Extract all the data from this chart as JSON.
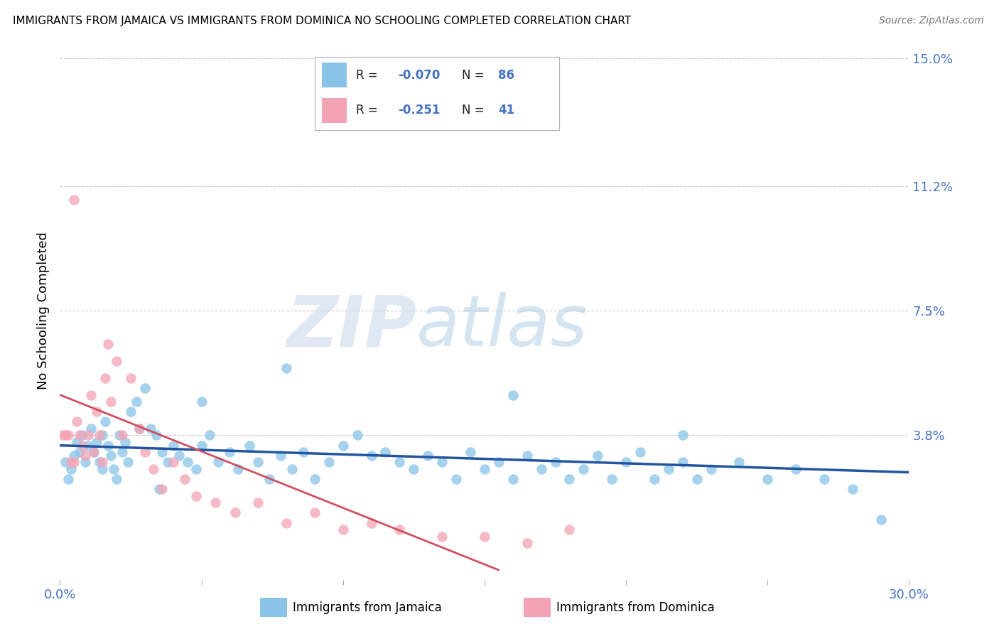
{
  "title": "IMMIGRANTS FROM JAMAICA VS IMMIGRANTS FROM DOMINICA NO SCHOOLING COMPLETED CORRELATION CHART",
  "source": "Source: ZipAtlas.com",
  "ylabel": "No Schooling Completed",
  "xlim": [
    0.0,
    0.3
  ],
  "ylim": [
    -0.005,
    0.155
  ],
  "yticks": [
    0.0,
    0.038,
    0.075,
    0.112,
    0.15
  ],
  "yticklabels": [
    "",
    "3.8%",
    "7.5%",
    "11.2%",
    "15.0%"
  ],
  "jamaica_color": "#89c4e8",
  "dominica_color": "#f4a3b5",
  "jamaica_line_color": "#2255a0",
  "dominica_line_color": "#d05060",
  "tick_label_color": "#4472c4",
  "watermark_zip": "ZIP",
  "watermark_atlas": "atlas",
  "background_color": "#ffffff",
  "grid_color": "#cccccc",
  "jamaica_x": [
    0.002,
    0.003,
    0.004,
    0.005,
    0.006,
    0.007,
    0.008,
    0.009,
    0.01,
    0.011,
    0.012,
    0.013,
    0.014,
    0.015,
    0.016,
    0.017,
    0.018,
    0.019,
    0.02,
    0.021,
    0.022,
    0.023,
    0.024,
    0.025,
    0.027,
    0.028,
    0.03,
    0.032,
    0.034,
    0.036,
    0.038,
    0.04,
    0.042,
    0.045,
    0.048,
    0.05,
    0.053,
    0.056,
    0.06,
    0.063,
    0.067,
    0.07,
    0.074,
    0.078,
    0.082,
    0.086,
    0.09,
    0.095,
    0.1,
    0.105,
    0.11,
    0.115,
    0.12,
    0.125,
    0.13,
    0.135,
    0.14,
    0.145,
    0.15,
    0.155,
    0.16,
    0.165,
    0.17,
    0.175,
    0.18,
    0.185,
    0.19,
    0.195,
    0.2,
    0.205,
    0.21,
    0.215,
    0.22,
    0.225,
    0.23,
    0.24,
    0.25,
    0.26,
    0.27,
    0.28,
    0.29,
    0.05,
    0.08,
    0.16,
    0.22,
    0.015,
    0.035
  ],
  "jamaica_y": [
    0.03,
    0.025,
    0.028,
    0.032,
    0.036,
    0.033,
    0.038,
    0.03,
    0.035,
    0.04,
    0.033,
    0.036,
    0.03,
    0.038,
    0.042,
    0.035,
    0.032,
    0.028,
    0.025,
    0.038,
    0.033,
    0.036,
    0.03,
    0.045,
    0.048,
    0.04,
    0.052,
    0.04,
    0.038,
    0.033,
    0.03,
    0.035,
    0.032,
    0.03,
    0.028,
    0.035,
    0.038,
    0.03,
    0.033,
    0.028,
    0.035,
    0.03,
    0.025,
    0.032,
    0.028,
    0.033,
    0.025,
    0.03,
    0.035,
    0.038,
    0.032,
    0.033,
    0.03,
    0.028,
    0.032,
    0.03,
    0.025,
    0.033,
    0.028,
    0.03,
    0.025,
    0.032,
    0.028,
    0.03,
    0.025,
    0.028,
    0.032,
    0.025,
    0.03,
    0.033,
    0.025,
    0.028,
    0.03,
    0.025,
    0.028,
    0.03,
    0.025,
    0.028,
    0.025,
    0.022,
    0.013,
    0.048,
    0.058,
    0.05,
    0.038,
    0.028,
    0.022
  ],
  "dominica_x": [
    0.001,
    0.002,
    0.003,
    0.004,
    0.005,
    0.006,
    0.007,
    0.008,
    0.009,
    0.01,
    0.011,
    0.012,
    0.013,
    0.014,
    0.015,
    0.016,
    0.017,
    0.018,
    0.02,
    0.022,
    0.025,
    0.028,
    0.03,
    0.033,
    0.036,
    0.04,
    0.044,
    0.048,
    0.055,
    0.062,
    0.07,
    0.08,
    0.09,
    0.1,
    0.11,
    0.12,
    0.135,
    0.15,
    0.165,
    0.18,
    0.005
  ],
  "dominica_y": [
    0.038,
    0.038,
    0.038,
    0.03,
    0.03,
    0.042,
    0.038,
    0.035,
    0.032,
    0.038,
    0.05,
    0.033,
    0.045,
    0.038,
    0.03,
    0.055,
    0.065,
    0.048,
    0.06,
    0.038,
    0.055,
    0.04,
    0.033,
    0.028,
    0.022,
    0.03,
    0.025,
    0.02,
    0.018,
    0.015,
    0.018,
    0.012,
    0.015,
    0.01,
    0.012,
    0.01,
    0.008,
    0.008,
    0.006,
    0.01,
    0.108
  ],
  "jamaica_line_x": [
    0.0,
    0.3
  ],
  "jamaica_line_y": [
    0.035,
    0.027
  ],
  "dominica_line_x": [
    0.0,
    0.155
  ],
  "dominica_line_y": [
    0.05,
    -0.002
  ]
}
